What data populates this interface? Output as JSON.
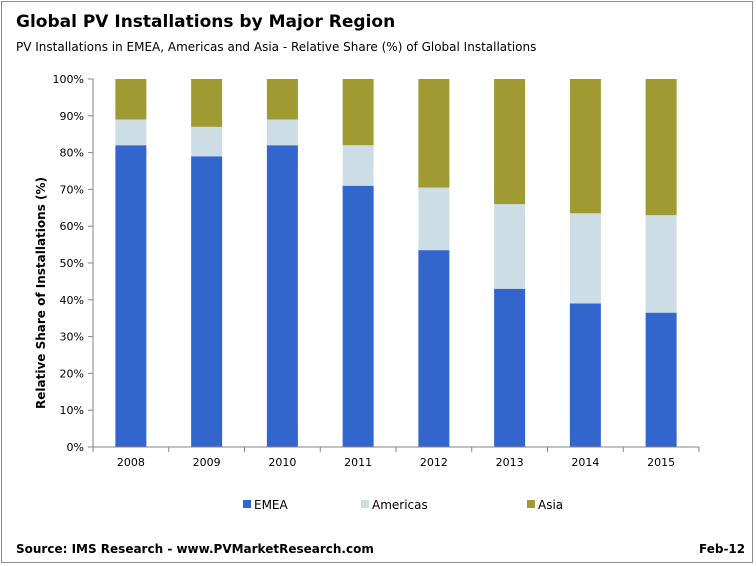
{
  "header": {
    "title": "Global PV Installations by Major Region",
    "subtitle": "PV Installations in EMEA, Americas and Asia - Relative Share (%) of Global Installations"
  },
  "footer": {
    "source": "Source: IMS Research - www.PVMarketResearch.com",
    "date": "Feb-12"
  },
  "colors": {
    "EMEA": "#3366cc",
    "Americas": "#cddde6",
    "Asia": "#a09a32"
  },
  "chart_data": {
    "type": "bar",
    "stacked": true,
    "title": "",
    "xlabel": "",
    "ylabel": "Relative Share of Installations (%)",
    "ylim": [
      0,
      100
    ],
    "yticks": [
      "0%",
      "10%",
      "20%",
      "30%",
      "40%",
      "50%",
      "60%",
      "70%",
      "80%",
      "90%",
      "100%"
    ],
    "categories": [
      "2008",
      "2009",
      "2010",
      "2011",
      "2012",
      "2013",
      "2014",
      "2015"
    ],
    "series": [
      {
        "name": "EMEA",
        "values": [
          82,
          79,
          82,
          71,
          53.5,
          43,
          39,
          36.5
        ]
      },
      {
        "name": "Americas",
        "values": [
          7,
          8,
          7,
          11,
          17,
          23,
          24.5,
          26.5
        ]
      },
      {
        "name": "Asia",
        "values": [
          11,
          13,
          11,
          18,
          29.5,
          34,
          36.5,
          37
        ]
      }
    ],
    "legend": {
      "position": "bottom"
    },
    "grid": false
  }
}
